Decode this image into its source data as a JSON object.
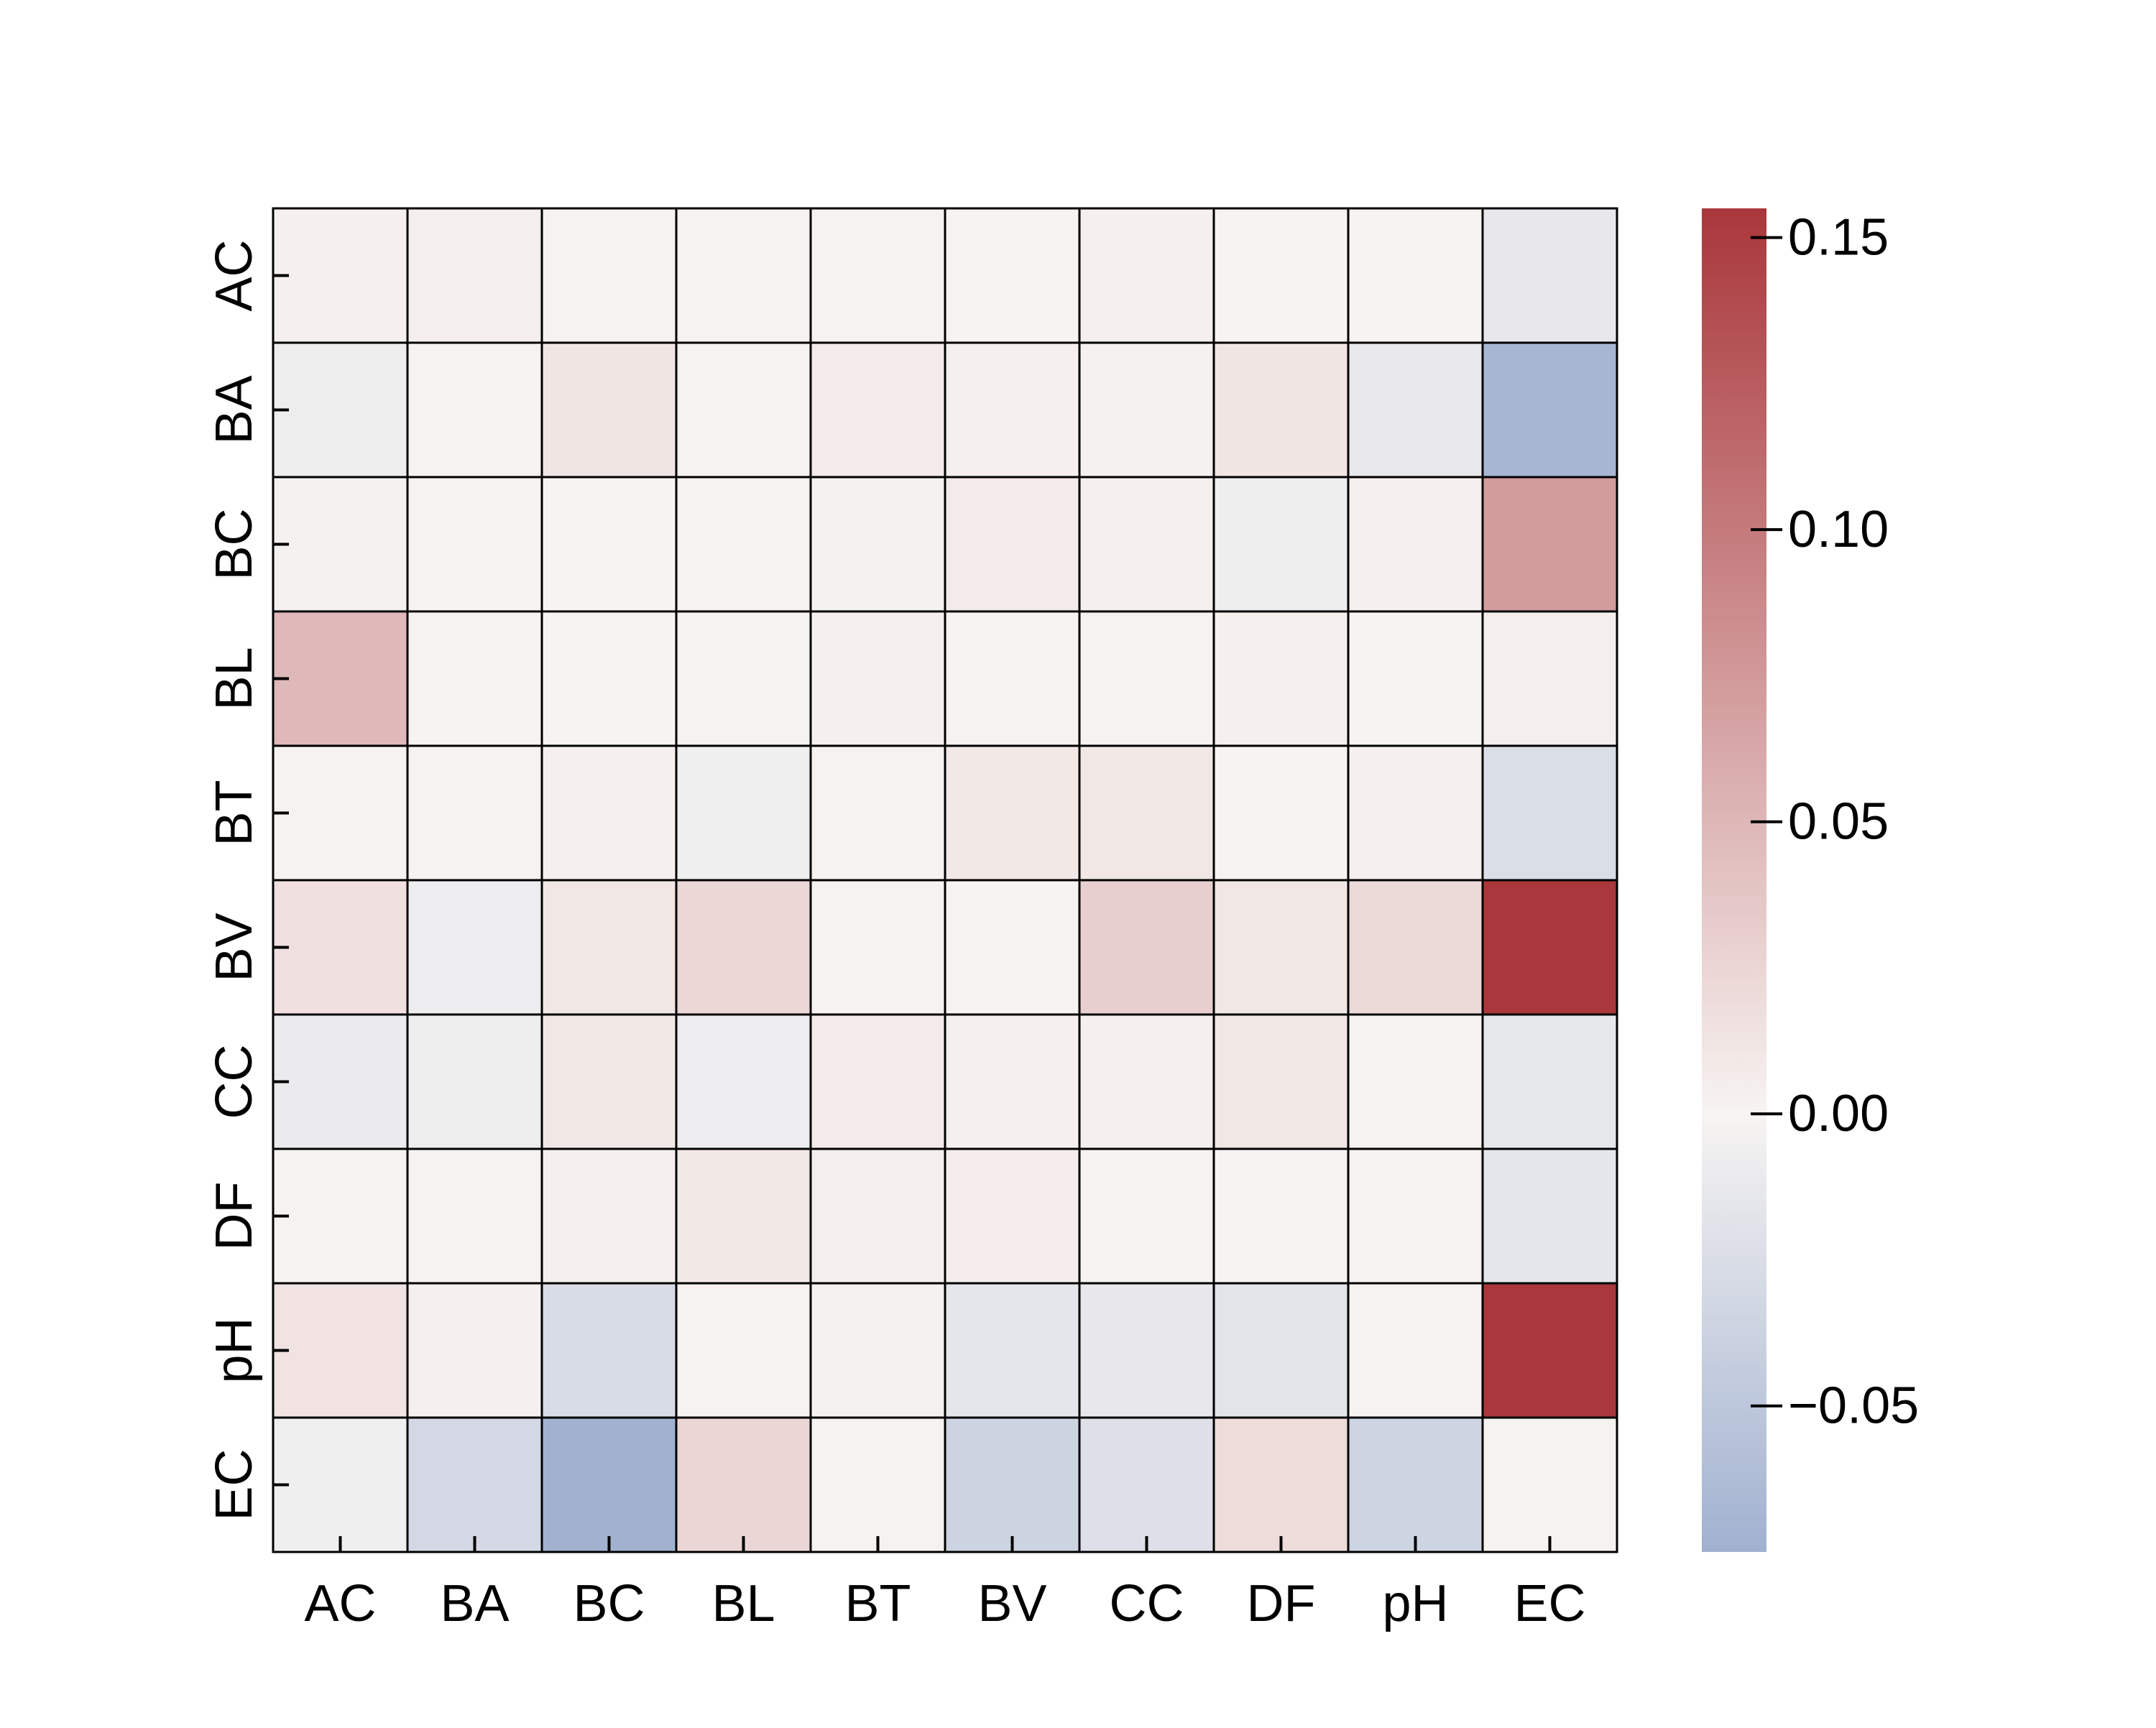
{
  "chart_data": {
    "type": "heatmap",
    "title": "",
    "xlabel": "",
    "ylabel": "",
    "x_categories": [
      "AC",
      "BA",
      "BC",
      "BL",
      "BT",
      "BV",
      "CC",
      "DF",
      "pH",
      "EC"
    ],
    "y_categories": [
      "AC",
      "BA",
      "BC",
      "BL",
      "BT",
      "BV",
      "CC",
      "DF",
      "pH",
      "EC"
    ],
    "values": [
      [
        0.003,
        0.005,
        0.002,
        -0.002,
        0.002,
        0.001,
        0.003,
        0.001,
        0.001,
        -0.013
      ],
      [
        -0.008,
        0.002,
        0.012,
        -0.002,
        0.007,
        0.004,
        -0.003,
        0.012,
        -0.012,
        -0.069
      ],
      [
        -0.003,
        0.002,
        0.001,
        0.002,
        -0.003,
        0.007,
        0.003,
        -0.007,
        0.004,
        0.073
      ],
      [
        0.048,
        0.001,
        0.001,
        0.002,
        0.004,
        -0.002,
        -0.002,
        0.004,
        -0.001,
        0.005
      ],
      [
        0.002,
        0.002,
        0.004,
        -0.006,
        0.002,
        0.01,
        0.011,
        0.001,
        0.004,
        -0.025
      ],
      [
        0.016,
        -0.009,
        0.011,
        0.024,
        0.002,
        0.001,
        0.03,
        0.011,
        0.021,
        0.155
      ],
      [
        -0.01,
        -0.007,
        0.011,
        -0.009,
        0.008,
        0.003,
        0.003,
        0.011,
        0.001,
        -0.015
      ],
      [
        0.002,
        0.002,
        0.003,
        0.01,
        0.005,
        0.006,
        0.002,
        0.001,
        -0.002,
        -0.016
      ],
      [
        0.014,
        0.003,
        -0.027,
        0.002,
        -0.003,
        -0.016,
        -0.013,
        -0.018,
        0.002,
        0.155
      ],
      [
        -0.006,
        -0.031,
        -0.074,
        0.025,
        0.002,
        -0.037,
        -0.022,
        0.02,
        -0.036,
        0.002
      ]
    ],
    "colorbar": {
      "vmin": -0.075,
      "vmax": 0.155,
      "ticks": [
        -0.05,
        0.0,
        0.05,
        0.1,
        0.15
      ],
      "tick_labels": [
        "−0.05",
        "0.00",
        "0.05",
        "0.10",
        "0.15"
      ],
      "colormap": "vlag",
      "color_low": "#a0b1d0",
      "color_mid": "#f7f4f2",
      "color_high": "#a9373b"
    },
    "grid": true,
    "cell_border_color": "#000000"
  }
}
